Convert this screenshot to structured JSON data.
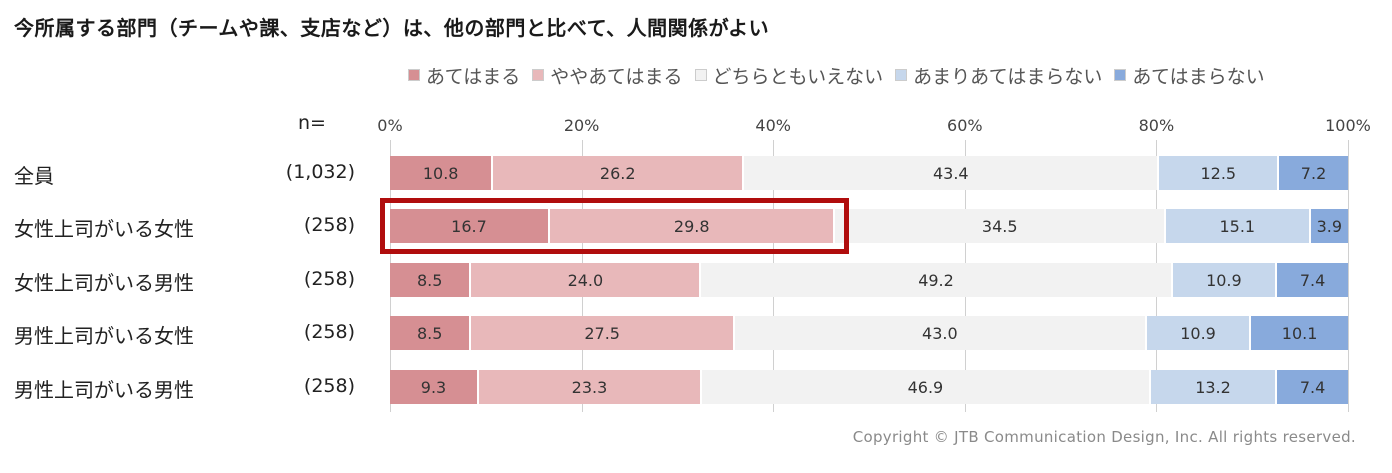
{
  "chart_data": {
    "type": "bar",
    "stacked": true,
    "orientation": "horizontal",
    "title": "今所属する部門（チームや課、支店など）は、他の部門と比べて、人間関係がよい",
    "n_header": "n=",
    "xlim": [
      0,
      100
    ],
    "x_ticks": [
      "0%",
      "20%",
      "40%",
      "60%",
      "80%",
      "100%"
    ],
    "legend_position": "top",
    "grid": true,
    "categories": [
      "全員",
      "女性上司がいる女性",
      "女性上司がいる男性",
      "男性上司がいる女性",
      "男性上司がいる男性"
    ],
    "n_values": [
      "(1,032)",
      "(258)",
      "(258)",
      "(258)",
      "(258)"
    ],
    "series": [
      {
        "name": "あてはまる",
        "color": "#d68f93",
        "values": [
          10.8,
          16.7,
          8.5,
          8.5,
          9.3
        ]
      },
      {
        "name": "ややあてはまる",
        "color": "#e8b8ba",
        "values": [
          26.2,
          29.8,
          24.0,
          27.5,
          23.3
        ]
      },
      {
        "name": "どちらともいえない",
        "color": "#f2f2f2",
        "values": [
          43.4,
          34.5,
          49.2,
          43.0,
          46.9
        ]
      },
      {
        "name": "あまりあてはまらない",
        "color": "#c6d7ec",
        "values": [
          12.5,
          15.1,
          10.9,
          10.9,
          13.2
        ]
      },
      {
        "name": "あてはまらない",
        "color": "#88aadc",
        "values": [
          7.2,
          3.9,
          7.4,
          10.1,
          7.4
        ]
      }
    ],
    "highlight": {
      "row": 1,
      "series": [
        0,
        1
      ],
      "color": "#b00d0d"
    }
  },
  "footer": {
    "copyright": "Copyright © JTB Communication Design, Inc. All rights reserved."
  }
}
